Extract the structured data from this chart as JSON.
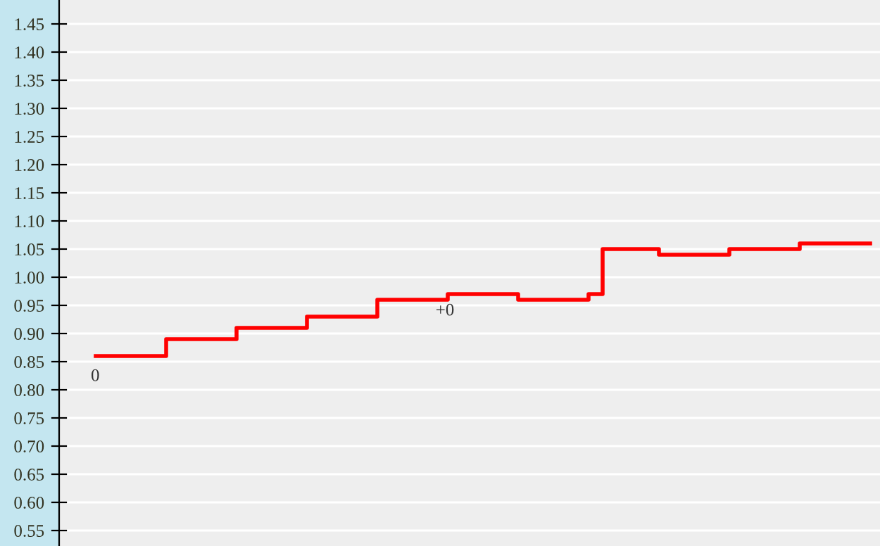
{
  "chart_data": {
    "type": "step",
    "categories": [
      null,
      null,
      null,
      null,
      null,
      null,
      null,
      null,
      null,
      null,
      null,
      null,
      null,
      null,
      null,
      null,
      null,
      null,
      null,
      null,
      null,
      null,
      null,
      null,
      null,
      null,
      null,
      null,
      null,
      null,
      null,
      null,
      null,
      null,
      null,
      null,
      null,
      null,
      null,
      null,
      null,
      null,
      null,
      null,
      null,
      null,
      null,
      null,
      null,
      null,
      null,
      null,
      null,
      null,
      null,
      null
    ],
    "series": [
      {
        "color": "#ff0000",
        "values": [
          0.86,
          0.86,
          0.86,
          0.86,
          0.86,
          0.89,
          0.89,
          0.89,
          0.89,
          0.89,
          0.91,
          0.91,
          0.91,
          0.91,
          0.91,
          0.93,
          0.93,
          0.93,
          0.93,
          0.93,
          0.96,
          0.96,
          0.96,
          0.96,
          0.96,
          0.97,
          0.97,
          0.97,
          0.97,
          0.97,
          0.96,
          0.96,
          0.96,
          0.96,
          0.96,
          0.97,
          1.05,
          1.05,
          1.05,
          1.05,
          1.04,
          1.04,
          1.04,
          1.04,
          1.04,
          1.05,
          1.05,
          1.05,
          1.05,
          1.05,
          1.06,
          1.06,
          1.06,
          1.06,
          1.06,
          1.06
        ]
      }
    ],
    "annotations": [
      "0",
      "+0"
    ],
    "ylim": [
      0.5225,
      1.4925
    ],
    "yticks": [
      {
        "value": 0.55,
        "label": "0.55"
      },
      {
        "value": 0.6,
        "label": "0.60"
      },
      {
        "value": 0.65,
        "label": "0.65"
      },
      {
        "value": 0.7,
        "label": "0.70"
      },
      {
        "value": 0.75,
        "label": "0.75"
      },
      {
        "value": 0.8,
        "label": "0.80"
      },
      {
        "value": 0.85,
        "label": "0.85"
      },
      {
        "value": 0.9,
        "label": "0.90"
      },
      {
        "value": 0.95,
        "label": "0.95"
      },
      {
        "value": 1.0,
        "label": "1.00"
      },
      {
        "value": 1.05,
        "label": "1.05"
      },
      {
        "value": 1.1,
        "label": "1.10"
      },
      {
        "value": 1.15,
        "label": "1.15"
      },
      {
        "value": 1.2,
        "label": "1.20"
      },
      {
        "value": 1.25,
        "label": "1.25"
      },
      {
        "value": 1.3,
        "label": "1.30"
      },
      {
        "value": 1.35,
        "label": "1.35"
      },
      {
        "value": 1.4,
        "label": "1.40"
      },
      {
        "value": 1.45,
        "label": "1.45"
      }
    ],
    "grid": "y",
    "tick_labels": "y",
    "line_style": "solid",
    "marker": "none"
  }
}
